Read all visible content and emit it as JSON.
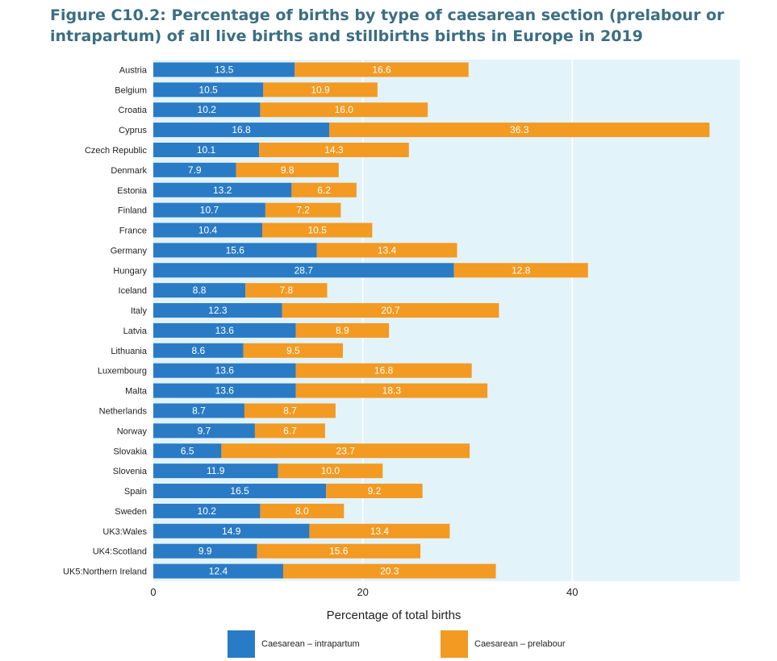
{
  "title": "Figure C10.2: Percentage of births by type of caesarean section (prelabour or intrapartum) of all live births and stillbirths births in Europe in 2019",
  "colors": {
    "intrapartum": "#2a7bc5",
    "prelabour": "#f39a22",
    "plot_background": "#e3f3fa",
    "grid": "#ffffff"
  },
  "chart_data": {
    "type": "bar",
    "orientation": "horizontal",
    "stacked": true,
    "categories": [
      "Austria",
      "Belgium",
      "Croatia",
      "Cyprus",
      "Czech Republic",
      "Denmark",
      "Estonia",
      "Finland",
      "France",
      "Germany",
      "Hungary",
      "Iceland",
      "Italy",
      "Latvia",
      "Lithuania",
      "Luxembourg",
      "Malta",
      "Netherlands",
      "Norway",
      "Slovakia",
      "Slovenia",
      "Spain",
      "Sweden",
      "UK3:Wales",
      "UK4:Scotland",
      "UK5:Northern Ireland"
    ],
    "series": [
      {
        "name": "Caesarean – intrapartum",
        "values": [
          13.5,
          10.5,
          10.2,
          16.8,
          10.1,
          7.9,
          13.2,
          10.7,
          10.4,
          15.6,
          28.7,
          8.8,
          12.3,
          13.6,
          8.6,
          13.6,
          13.6,
          8.7,
          9.7,
          6.5,
          11.9,
          16.5,
          10.2,
          14.9,
          9.9,
          12.4
        ]
      },
      {
        "name": "Caesarean – prelabour",
        "values": [
          16.6,
          10.9,
          16.0,
          36.3,
          14.3,
          9.8,
          6.2,
          7.2,
          10.5,
          13.4,
          12.8,
          7.8,
          20.7,
          8.9,
          9.5,
          16.8,
          18.3,
          8.7,
          6.7,
          23.7,
          10.0,
          9.2,
          8.0,
          13.4,
          15.6,
          20.3
        ]
      }
    ],
    "value_labels": {
      "intrapartum": [
        "13.5",
        "10.5",
        "10.2",
        "16.8",
        "10.1",
        "7.9",
        "13.2",
        "10.7",
        "10.4",
        "15.6",
        "28.7",
        "8.8",
        "12.3",
        "13.6",
        "8.6",
        "13.6",
        "13.6",
        "8.7",
        "9.7",
        "6.5",
        "11.9",
        "16.5",
        "10.2",
        "14.9",
        "9.9",
        "12.4"
      ],
      "prelabour": [
        "16.6",
        "10.9",
        "16.0",
        "36.3",
        "14.3",
        "9.8",
        "6.2",
        "7.2",
        "10.5",
        "13.4",
        "12.8",
        "7.8",
        "20.7",
        "8.9",
        "9.5",
        "16.8",
        "18.3",
        "8.7",
        "6.7",
        "23.7",
        "10.0",
        "9.2",
        "8.0",
        "13.4",
        "15.6",
        "20.3"
      ]
    },
    "xlabel": "Percentage of total births",
    "ylabel": "",
    "xlim": [
      0,
      56
    ],
    "xticks": [
      0,
      20,
      40
    ],
    "xtick_labels": [
      "0",
      "20",
      "40"
    ],
    "grid": true,
    "legend_position": "bottom"
  }
}
